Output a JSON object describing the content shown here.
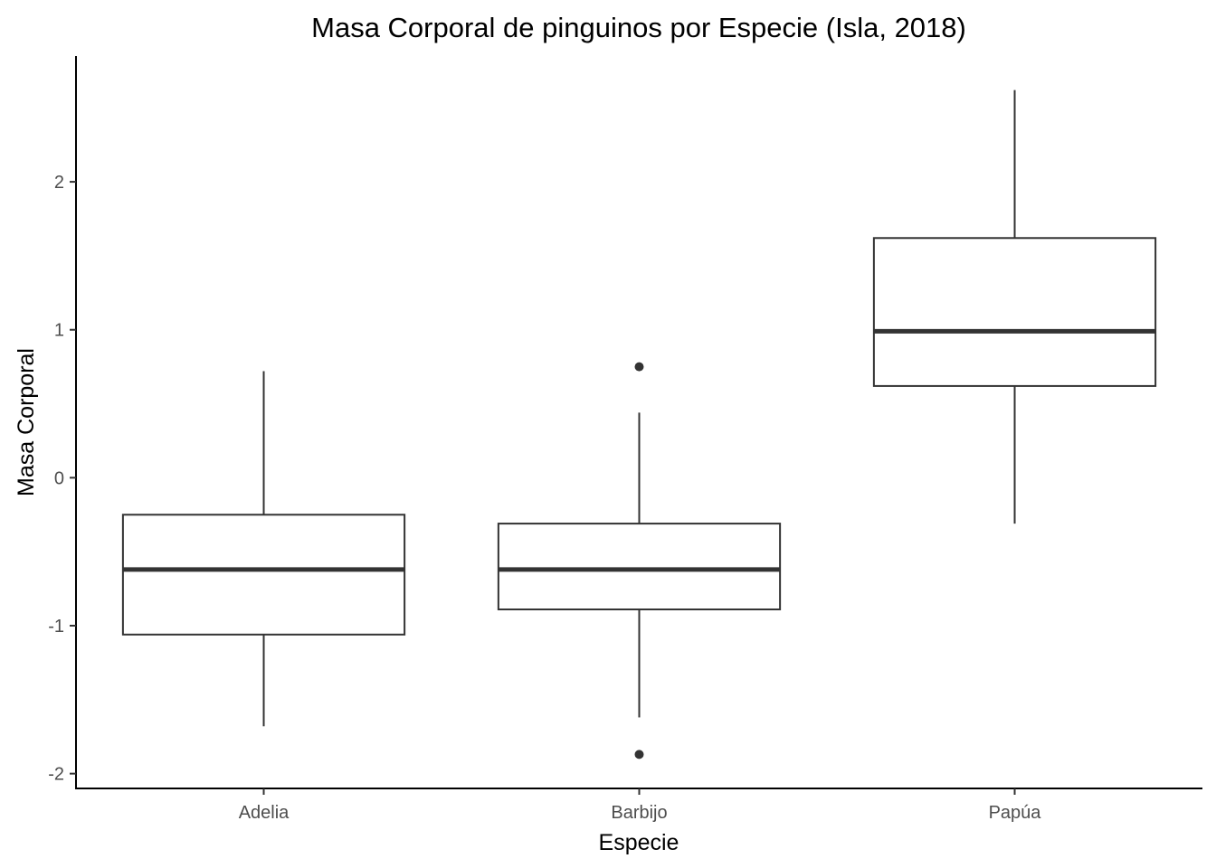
{
  "chart_data": {
    "type": "boxplot",
    "title": "Masa Corporal de pinguinos por Especie (Isla, 2018)",
    "xlabel": "Especie",
    "ylabel": "Masa Corporal",
    "ylim": [
      -2.1,
      2.85
    ],
    "yticks": [
      -2,
      -1,
      0,
      1,
      2
    ],
    "ytick_labels": [
      "-2",
      "-1",
      "0",
      "1",
      "2"
    ],
    "grid": false,
    "legend": "none",
    "categories": [
      "Adelia",
      "Barbijo",
      "Papúa"
    ],
    "boxes": [
      {
        "category": "Adelia",
        "whisker_low": -1.68,
        "q1": -1.06,
        "median": -0.62,
        "q3": -0.25,
        "whisker_high": 0.72,
        "outliers": []
      },
      {
        "category": "Barbijo",
        "whisker_low": -1.62,
        "q1": -0.89,
        "median": -0.62,
        "q3": -0.31,
        "whisker_high": 0.44,
        "outliers": [
          0.75,
          -1.87
        ]
      },
      {
        "category": "Papúa",
        "whisker_low": -0.31,
        "q1": 0.62,
        "median": 0.99,
        "q3": 1.62,
        "whisker_high": 2.62,
        "outliers": []
      }
    ]
  }
}
